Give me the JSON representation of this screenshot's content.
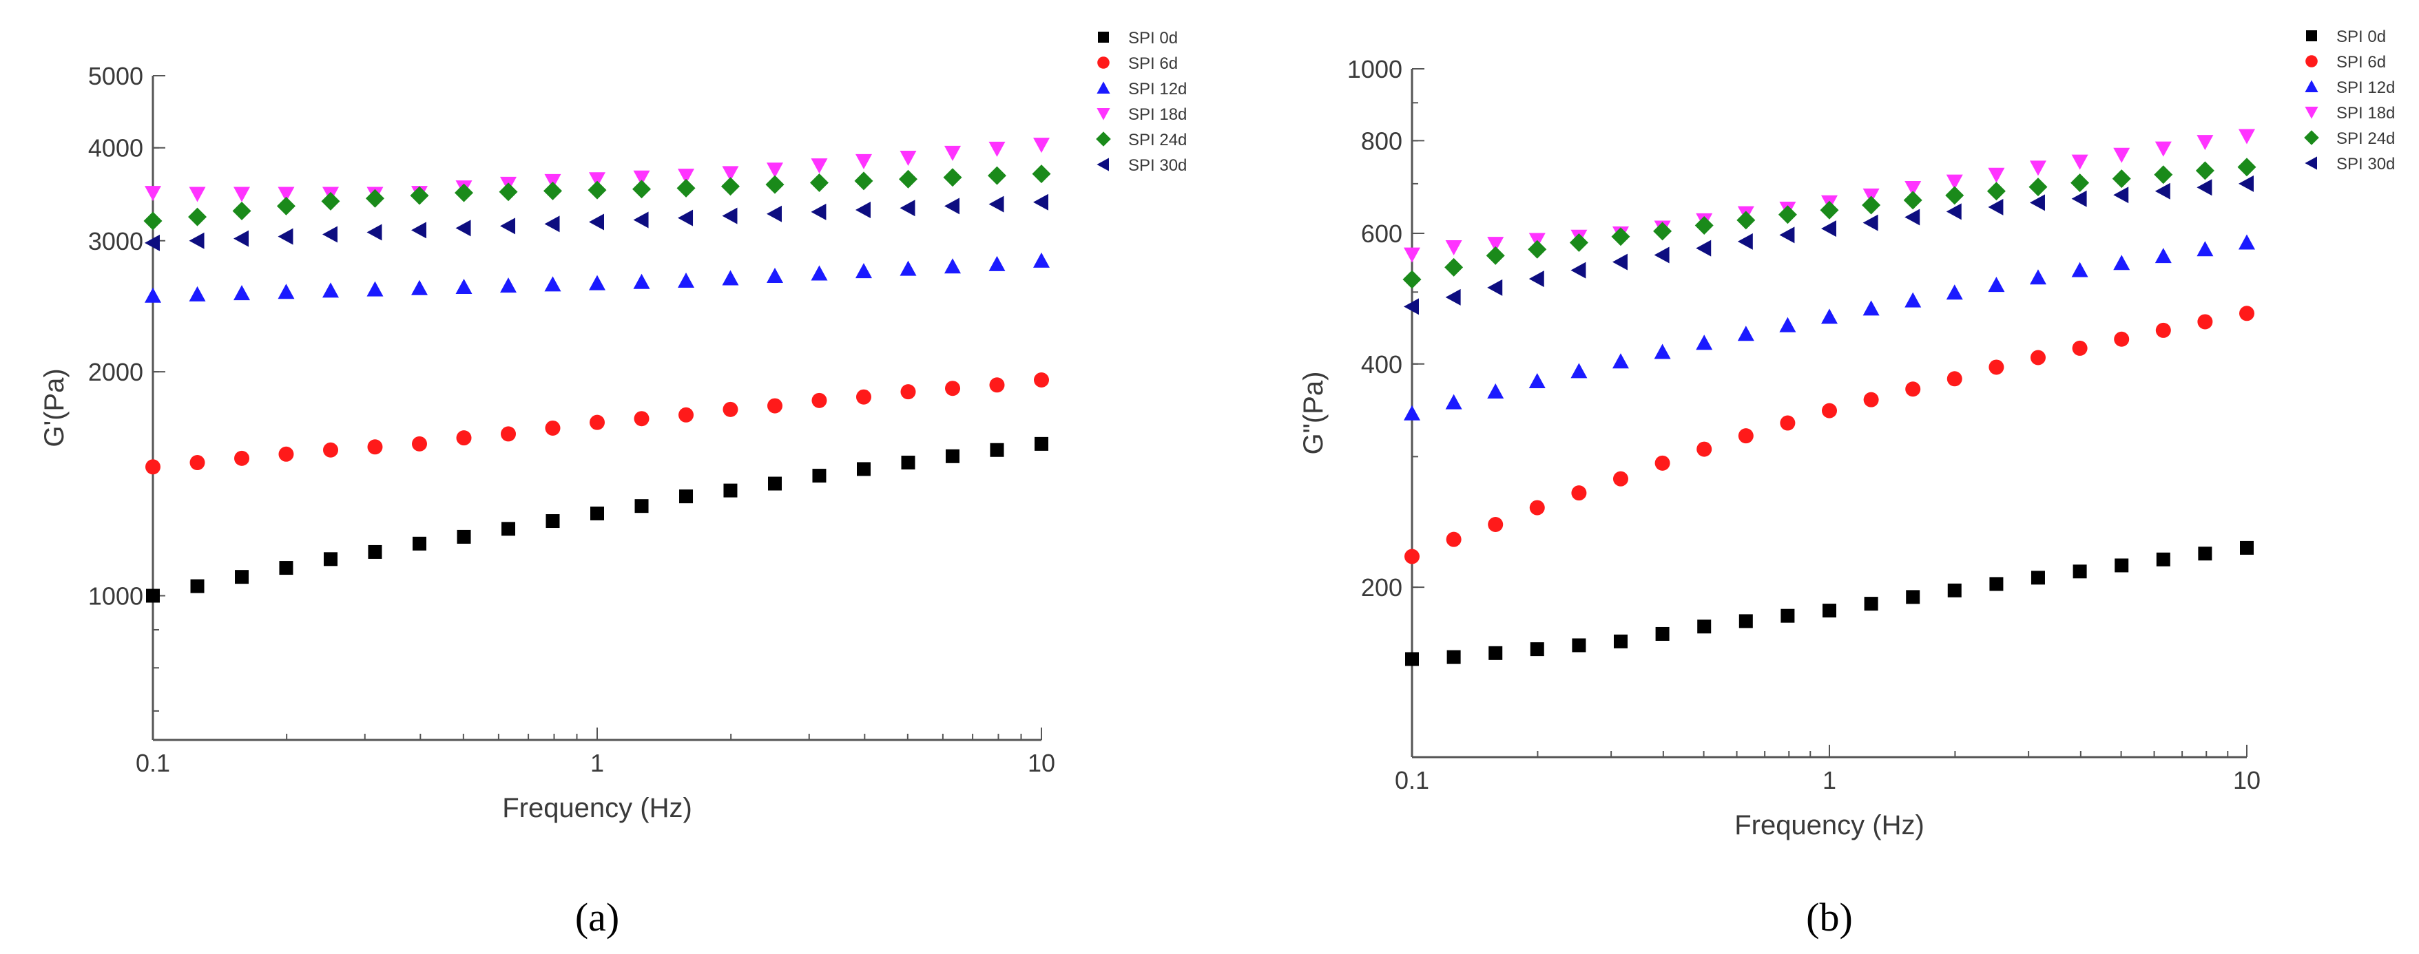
{
  "chart_data": [
    {
      "type": "scatter",
      "panel_label": "(a)",
      "xlabel": "Frequency (Hz)",
      "ylabel": "G'(Pa)",
      "xscale": "log",
      "yscale": "log",
      "xlim": [
        0.1,
        10
      ],
      "ylim": [
        640,
        5000
      ],
      "x_ticks": [
        0.1,
        1,
        10
      ],
      "x_tick_labels": [
        "0.1",
        "1",
        "10"
      ],
      "y_ticks": [
        1000,
        2000,
        3000,
        4000,
        5000
      ],
      "y_tick_labels": [
        "1000",
        "2000",
        "3000",
        "4000",
        "5000"
      ],
      "legend_position": "top-right",
      "x": [
        0.1,
        0.1259,
        0.1585,
        0.1995,
        0.2512,
        0.3162,
        0.3981,
        0.5012,
        0.631,
        0.7943,
        1,
        1.259,
        1.585,
        1.995,
        2.512,
        3.162,
        3.981,
        5.012,
        6.31,
        7.943,
        10
      ],
      "series": [
        {
          "name": "SPI 0d",
          "color": "#000000",
          "marker": "square",
          "values": [
            1000,
            1030,
            1060,
            1090,
            1120,
            1145,
            1175,
            1200,
            1230,
            1260,
            1290,
            1320,
            1360,
            1385,
            1415,
            1450,
            1480,
            1510,
            1540,
            1570,
            1600
          ]
        },
        {
          "name": "SPI 6d",
          "color": "#ff1a1a",
          "marker": "circle",
          "values": [
            1490,
            1510,
            1530,
            1550,
            1570,
            1585,
            1600,
            1630,
            1650,
            1680,
            1710,
            1730,
            1750,
            1780,
            1800,
            1830,
            1850,
            1880,
            1900,
            1920,
            1950
          ]
        },
        {
          "name": "SPI 12d",
          "color": "#1a1aff",
          "marker": "triangle-up",
          "values": [
            2530,
            2540,
            2550,
            2560,
            2570,
            2580,
            2590,
            2600,
            2610,
            2620,
            2630,
            2640,
            2650,
            2670,
            2690,
            2710,
            2730,
            2750,
            2770,
            2790,
            2820
          ]
        },
        {
          "name": "SPI 18d",
          "color": "#ff33ff",
          "marker": "triangle-down",
          "values": [
            3480,
            3470,
            3470,
            3470,
            3470,
            3470,
            3480,
            3540,
            3580,
            3610,
            3630,
            3650,
            3670,
            3700,
            3740,
            3790,
            3840,
            3880,
            3940,
            3990,
            4040
          ]
        },
        {
          "name": "SPI 24d",
          "color": "#1a8a1a",
          "marker": "diamond",
          "values": [
            3190,
            3230,
            3290,
            3340,
            3390,
            3420,
            3450,
            3480,
            3490,
            3500,
            3510,
            3520,
            3530,
            3550,
            3570,
            3590,
            3610,
            3630,
            3650,
            3670,
            3690
          ]
        },
        {
          "name": "SPI 30d",
          "color": "#0d0d80",
          "marker": "triangle-left",
          "values": [
            2980,
            3000,
            3020,
            3040,
            3060,
            3080,
            3100,
            3120,
            3140,
            3160,
            3180,
            3200,
            3220,
            3240,
            3260,
            3280,
            3300,
            3320,
            3340,
            3360,
            3380
          ]
        }
      ]
    },
    {
      "type": "scatter",
      "panel_label": "(b)",
      "xlabel": "Frequency (Hz)",
      "ylabel": "G\"(Pa)",
      "xscale": "log",
      "yscale": "log",
      "xlim": [
        0.1,
        10
      ],
      "ylim": [
        118,
        1000
      ],
      "x_ticks": [
        0.1,
        1,
        10
      ],
      "x_tick_labels": [
        "0.1",
        "1",
        "10"
      ],
      "y_ticks": [
        200,
        400,
        600,
        800,
        1000
      ],
      "y_tick_labels": [
        "200",
        "400",
        "600",
        "800",
        "1000"
      ],
      "legend_position": "top-right",
      "x": [
        0.1,
        0.1259,
        0.1585,
        0.1995,
        0.2512,
        0.3162,
        0.3981,
        0.5012,
        0.631,
        0.7943,
        1,
        1.259,
        1.585,
        1.995,
        2.512,
        3.162,
        3.981,
        5.012,
        6.31,
        7.943,
        10
      ],
      "series": [
        {
          "name": "SPI 0d",
          "color": "#000000",
          "marker": "square",
          "values": [
            160,
            161,
            163,
            165,
            167,
            169,
            173,
            177,
            180,
            183,
            186,
            190,
            194,
            198,
            202,
            206,
            210,
            214,
            218,
            222,
            226
          ]
        },
        {
          "name": "SPI 6d",
          "color": "#ff1a1a",
          "marker": "circle",
          "values": [
            220,
            232,
            243,
            256,
            268,
            280,
            294,
            307,
            320,
            333,
            346,
            358,
            370,
            382,
            396,
            408,
            420,
            432,
            444,
            456,
            468
          ]
        },
        {
          "name": "SPI 12d",
          "color": "#1a1aff",
          "marker": "triangle-up",
          "values": [
            343,
            355,
            367,
            379,
            391,
            403,
            415,
            427,
            439,
            451,
            463,
            475,
            487,
            499,
            511,
            523,
            535,
            547,
            559,
            571,
            583
          ]
        },
        {
          "name": "SPI 18d",
          "color": "#ff33ff",
          "marker": "triangle-down",
          "values": [
            562,
            575,
            581,
            588,
            594,
            600,
            611,
            625,
            639,
            648,
            661,
            675,
            691,
            705,
            720,
            736,
            750,
            766,
            781,
            797,
            812
          ]
        },
        {
          "name": "SPI 24d",
          "color": "#1a8a1a",
          "marker": "diamond",
          "values": [
            520,
            540,
            560,
            571,
            583,
            594,
            604,
            615,
            625,
            636,
            645,
            655,
            665,
            675,
            684,
            693,
            702,
            711,
            720,
            729,
            737
          ]
        },
        {
          "name": "SPI 30d",
          "color": "#0d0d80",
          "marker": "triangle-left",
          "values": [
            478,
            492,
            507,
            521,
            535,
            549,
            561,
            573,
            585,
            597,
            609,
            620,
            631,
            642,
            651,
            660,
            668,
            676,
            684,
            692,
            700
          ]
        }
      ]
    }
  ]
}
